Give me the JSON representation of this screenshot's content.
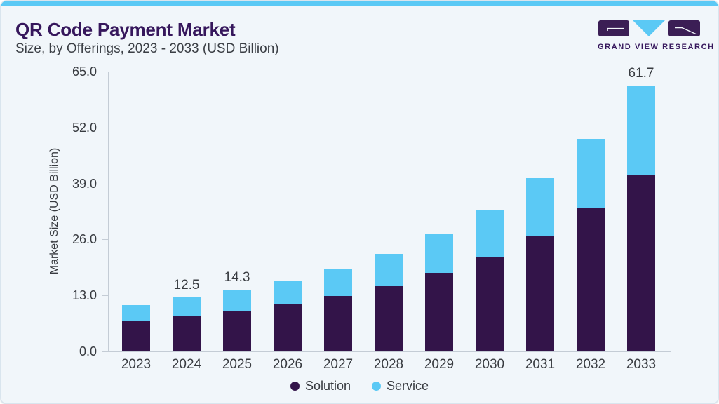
{
  "page": {
    "title": "QR Code Payment Market",
    "subtitle": "Size, by Offerings, 2023 - 2033 (USD Billion)"
  },
  "logo": {
    "text": "GRAND VIEW RESEARCH",
    "icon": "gvr-logo-icon"
  },
  "colors": {
    "accent_blue": "#5BC9F5",
    "solution_purple": "#331449",
    "brand_purple": "#36175C",
    "logo_rect_purple": "#3B1E55",
    "card_bg": "#F1F6FA",
    "axis_gray": "#C4CCD5",
    "text_dark": "#383B40"
  },
  "chart_data": {
    "type": "bar",
    "stacked": true,
    "title": "QR Code Payment Market Size, by Offerings, 2023 - 2033 (USD Billion)",
    "categories": [
      "2023",
      "2024",
      "2025",
      "2026",
      "2027",
      "2028",
      "2029",
      "2030",
      "2031",
      "2032",
      "2033"
    ],
    "series": [
      {
        "name": "Solution",
        "color": "#331449",
        "values": [
          7.2,
          8.3,
          9.3,
          10.9,
          12.8,
          15.1,
          18.2,
          22.0,
          26.8,
          33.2,
          41.1
        ]
      },
      {
        "name": "Service",
        "color": "#5BC9F5",
        "values": [
          3.6,
          4.2,
          5.0,
          5.4,
          6.2,
          7.5,
          9.1,
          10.8,
          13.4,
          16.2,
          20.6
        ]
      }
    ],
    "totals": [
      10.8,
      12.5,
      14.3,
      16.3,
      19.0,
      22.6,
      27.3,
      32.8,
      40.2,
      49.4,
      61.7
    ],
    "total_labels": [
      "",
      "12.5",
      "14.3",
      "",
      "",
      "",
      "",
      "",
      "",
      "",
      "61.7"
    ],
    "xlabel": "",
    "ylabel": "Market Size (USD Billion)",
    "ylim": [
      0,
      65
    ],
    "yticks": [
      0,
      13,
      26,
      39,
      52,
      65
    ],
    "ytick_labels": [
      "0.0",
      "13.0",
      "26.0",
      "39.0",
      "52.0",
      "65.0"
    ],
    "grid": false,
    "legend": [
      "Solution",
      "Service"
    ],
    "legend_position": "bottom"
  }
}
